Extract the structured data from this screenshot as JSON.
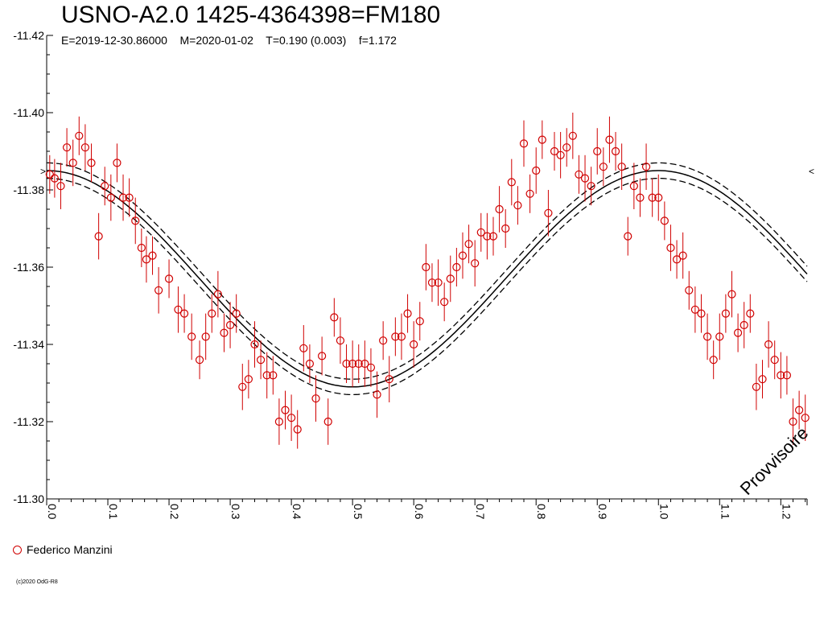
{
  "title": "USNO-A2.0 1425-4364398=FM180",
  "subtitle": "E=2019-12-30.86000    M=2020-01-02    T=0.190 (0.003)    f=1.172",
  "legend": {
    "label": "Federico Manzini",
    "color": "#d00000"
  },
  "watermark": "Provvisoire",
  "copyright": "(c)2020 OdG-R8",
  "chart_data": {
    "type": "scatter",
    "xlabel": "",
    "ylabel": "",
    "xlim": [
      0.0,
      1.243
    ],
    "ylim": [
      -11.42,
      -11.3
    ],
    "y_inverted": true,
    "xticks": [
      "0.0",
      "0.1",
      "0.2",
      "0.3",
      "0.4",
      "0.5",
      "0.6",
      "0.7",
      "0.8",
      "0.9",
      "1.0",
      "1.1",
      "1.2"
    ],
    "yticks": [
      "-11.42",
      "-11.40",
      "-11.38",
      "-11.36",
      "-11.34",
      "-11.32",
      "-11.30"
    ],
    "model": {
      "min": -11.385,
      "max": -11.329,
      "phase_of_max": 0.0,
      "band": 0.002
    },
    "series": [
      {
        "name": "Federico Manzini",
        "color": "#d00000",
        "marker": "open-circle",
        "points": [
          [
            0.005,
            -11.384,
            0.005
          ],
          [
            0.013,
            -11.383,
            0.005
          ],
          [
            0.023,
            -11.381,
            0.006
          ],
          [
            0.033,
            -11.391,
            0.005
          ],
          [
            0.043,
            -11.387,
            0.006
          ],
          [
            0.053,
            -11.394,
            0.005
          ],
          [
            0.063,
            -11.391,
            0.006
          ],
          [
            0.073,
            -11.387,
            0.005
          ],
          [
            0.085,
            -11.368,
            0.006
          ],
          [
            0.095,
            -11.381,
            0.005
          ],
          [
            0.105,
            -11.378,
            0.006
          ],
          [
            0.115,
            -11.387,
            0.005
          ],
          [
            0.125,
            -11.378,
            0.006
          ],
          [
            0.135,
            -11.378,
            0.005
          ],
          [
            0.145,
            -11.372,
            0.006
          ],
          [
            0.155,
            -11.365,
            0.005
          ],
          [
            0.163,
            -11.362,
            0.006
          ],
          [
            0.173,
            -11.363,
            0.005
          ],
          [
            0.183,
            -11.354,
            0.006
          ],
          [
            0.2,
            -11.357,
            0.005
          ],
          [
            0.215,
            -11.349,
            0.006
          ],
          [
            0.225,
            -11.348,
            0.005
          ],
          [
            0.237,
            -11.342,
            0.006
          ],
          [
            0.25,
            -11.336,
            0.005
          ],
          [
            0.26,
            -11.342,
            0.006
          ],
          [
            0.27,
            -11.348,
            0.005
          ],
          [
            0.28,
            -11.353,
            0.006
          ],
          [
            0.29,
            -11.343,
            0.005
          ],
          [
            0.3,
            -11.345,
            0.006
          ],
          [
            0.31,
            -11.348,
            0.005
          ],
          [
            0.32,
            -11.329,
            0.006
          ],
          [
            0.33,
            -11.331,
            0.005
          ],
          [
            0.34,
            -11.34,
            0.006
          ],
          [
            0.35,
            -11.336,
            0.005
          ],
          [
            0.36,
            -11.332,
            0.006
          ],
          [
            0.37,
            -11.332,
            0.005
          ],
          [
            0.38,
            -11.32,
            0.006
          ],
          [
            0.39,
            -11.323,
            0.005
          ],
          [
            0.4,
            -11.321,
            0.006
          ],
          [
            0.41,
            -11.318,
            0.005
          ],
          [
            0.42,
            -11.339,
            0.006
          ],
          [
            0.43,
            -11.335,
            0.005
          ],
          [
            0.44,
            -11.326,
            0.006
          ],
          [
            0.45,
            -11.337,
            0.005
          ],
          [
            0.46,
            -11.32,
            0.006
          ],
          [
            0.47,
            -11.347,
            0.005
          ],
          [
            0.48,
            -11.341,
            0.006
          ],
          [
            0.49,
            -11.335,
            0.005
          ],
          [
            0.5,
            -11.335,
            0.006
          ],
          [
            0.51,
            -11.335,
            0.005
          ],
          [
            0.52,
            -11.335,
            0.006
          ],
          [
            0.53,
            -11.334,
            0.005
          ],
          [
            0.54,
            -11.327,
            0.006
          ],
          [
            0.55,
            -11.341,
            0.005
          ],
          [
            0.56,
            -11.331,
            0.006
          ],
          [
            0.57,
            -11.342,
            0.005
          ],
          [
            0.58,
            -11.342,
            0.006
          ],
          [
            0.59,
            -11.348,
            0.005
          ],
          [
            0.6,
            -11.34,
            0.006
          ],
          [
            0.61,
            -11.346,
            0.005
          ],
          [
            0.62,
            -11.36,
            0.006
          ],
          [
            0.63,
            -11.356,
            0.005
          ],
          [
            0.64,
            -11.356,
            0.006
          ],
          [
            0.65,
            -11.351,
            0.005
          ],
          [
            0.66,
            -11.357,
            0.006
          ],
          [
            0.67,
            -11.36,
            0.005
          ],
          [
            0.68,
            -11.363,
            0.006
          ],
          [
            0.69,
            -11.366,
            0.005
          ],
          [
            0.7,
            -11.361,
            0.006
          ],
          [
            0.71,
            -11.369,
            0.005
          ],
          [
            0.72,
            -11.368,
            0.006
          ],
          [
            0.73,
            -11.368,
            0.005
          ],
          [
            0.74,
            -11.375,
            0.006
          ],
          [
            0.75,
            -11.37,
            0.005
          ],
          [
            0.76,
            -11.382,
            0.006
          ],
          [
            0.77,
            -11.376,
            0.005
          ],
          [
            0.78,
            -11.392,
            0.006
          ],
          [
            0.79,
            -11.379,
            0.005
          ],
          [
            0.8,
            -11.385,
            0.006
          ],
          [
            0.81,
            -11.393,
            0.005
          ],
          [
            0.82,
            -11.374,
            0.006
          ],
          [
            0.83,
            -11.39,
            0.005
          ],
          [
            0.84,
            -11.389,
            0.006
          ],
          [
            0.85,
            -11.391,
            0.005
          ],
          [
            0.86,
            -11.394,
            0.006
          ],
          [
            0.87,
            -11.384,
            0.005
          ],
          [
            0.88,
            -11.383,
            0.006
          ],
          [
            0.89,
            -11.381,
            0.005
          ],
          [
            0.9,
            -11.39,
            0.006
          ],
          [
            0.91,
            -11.386,
            0.005
          ],
          [
            0.92,
            -11.393,
            0.006
          ],
          [
            0.93,
            -11.39,
            0.005
          ],
          [
            0.94,
            -11.386,
            0.006
          ],
          [
            0.95,
            -11.368,
            0.005
          ],
          [
            0.96,
            -11.381,
            0.006
          ],
          [
            0.97,
            -11.378,
            0.005
          ],
          [
            0.98,
            -11.386,
            0.006
          ],
          [
            0.99,
            -11.378,
            0.005
          ],
          [
            1.0,
            -11.378,
            0.006
          ],
          [
            1.01,
            -11.372,
            0.005
          ],
          [
            1.02,
            -11.365,
            0.006
          ],
          [
            1.03,
            -11.362,
            0.005
          ],
          [
            1.04,
            -11.363,
            0.006
          ],
          [
            1.05,
            -11.354,
            0.005
          ],
          [
            1.06,
            -11.349,
            0.006
          ],
          [
            1.07,
            -11.348,
            0.005
          ],
          [
            1.08,
            -11.342,
            0.006
          ],
          [
            1.09,
            -11.336,
            0.005
          ],
          [
            1.1,
            -11.342,
            0.006
          ],
          [
            1.11,
            -11.348,
            0.005
          ],
          [
            1.12,
            -11.353,
            0.006
          ],
          [
            1.13,
            -11.343,
            0.005
          ],
          [
            1.14,
            -11.345,
            0.006
          ],
          [
            1.15,
            -11.348,
            0.005
          ],
          [
            1.16,
            -11.329,
            0.006
          ],
          [
            1.17,
            -11.331,
            0.005
          ],
          [
            1.18,
            -11.34,
            0.006
          ],
          [
            1.19,
            -11.336,
            0.005
          ],
          [
            1.2,
            -11.332,
            0.006
          ],
          [
            1.21,
            -11.332,
            0.005
          ],
          [
            1.22,
            -11.32,
            0.006
          ],
          [
            1.23,
            -11.323,
            0.005
          ],
          [
            1.24,
            -11.321,
            0.006
          ]
        ]
      }
    ]
  }
}
